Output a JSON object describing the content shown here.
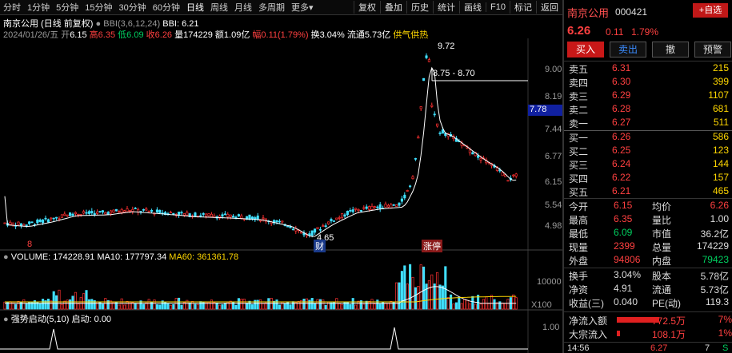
{
  "toolbar": {
    "items": [
      "分时",
      "1分钟",
      "5分钟",
      "15分钟",
      "30分钟",
      "60分钟",
      "日线",
      "周线",
      "月线",
      "多周期",
      "更多"
    ],
    "more_arrow": "▾",
    "right_items": [
      "复权",
      "叠加",
      "历史",
      "统计",
      "画线",
      "F10",
      "标记",
      "返回"
    ]
  },
  "chart": {
    "title": "南京公用 (日线 前复权)",
    "indicator": "BBI(3,6,12,24)",
    "indicator_value": "BBI: 6.21",
    "date": "2024/01/26/五",
    "open_label": "开",
    "open": "6.15",
    "high_label": "高",
    "high": "6.35",
    "low_label": "低",
    "low": "6.09",
    "close_label": "收",
    "close": "6.26",
    "vol_label": "量",
    "vol": "174229",
    "amt_label": "额",
    "amt": "1.09亿",
    "chg_label": "幅",
    "chg": "0.11(1.79%)",
    "turn_label": "换",
    "turn": "3.04%",
    "float_label": "流通",
    "float": "5.73亿",
    "tag": "供气供热",
    "peak_label": "9.72",
    "range_label": "8.75 - 8.70",
    "low_mark": "4.65",
    "price_ticks": [
      "9.00",
      "8.19",
      "7.44",
      "6.77",
      "6.15",
      "5.54",
      "4.98"
    ],
    "current_price_tag": "7.78",
    "event_tags": [
      "财",
      "涨停"
    ],
    "bottom_mark": "8"
  },
  "volume": {
    "label": "VOLUME: 174228.91",
    "ma10": "MA10: 177797.34",
    "ma60": "MA60: 361361.78",
    "tick": "10000",
    "unit": "X100"
  },
  "signal": {
    "label": "强势启动(5,10)",
    "value": "启动: 0.00",
    "tick": "1.00"
  },
  "quote": {
    "name": "南京公用",
    "code": "000421",
    "add_btn": "+自选",
    "price": "6.26",
    "change": "0.11",
    "pct": "1.79%",
    "buttons": [
      "买入",
      "卖出",
      "撤",
      "预警"
    ],
    "asks": [
      {
        "label": "卖五",
        "price": "6.31",
        "vol": "215"
      },
      {
        "label": "卖四",
        "price": "6.30",
        "vol": "399"
      },
      {
        "label": "卖三",
        "price": "6.29",
        "vol": "1107"
      },
      {
        "label": "卖二",
        "price": "6.28",
        "vol": "681"
      },
      {
        "label": "卖一",
        "price": "6.27",
        "vol": "511"
      }
    ],
    "bids": [
      {
        "label": "买一",
        "price": "6.26",
        "vol": "586"
      },
      {
        "label": "买二",
        "price": "6.25",
        "vol": "123"
      },
      {
        "label": "买三",
        "price": "6.24",
        "vol": "144"
      },
      {
        "label": "买四",
        "price": "6.22",
        "vol": "157"
      },
      {
        "label": "买五",
        "price": "6.21",
        "vol": "465"
      }
    ],
    "stats": [
      {
        "l1": "今开",
        "v1": "6.15",
        "l2": "均价",
        "v2": "6.26"
      },
      {
        "l1": "最高",
        "v1": "6.35",
        "l2": "量比",
        "v2": "1.00"
      },
      {
        "l1": "最低",
        "v1": "6.09",
        "l2": "市值",
        "v2": "36.2亿"
      },
      {
        "l1": "现量",
        "v1": "2399",
        "l2": "总量",
        "v2": "174229"
      },
      {
        "l1": "外盘",
        "v1": "94806",
        "l2": "内盘",
        "v2": "79423"
      }
    ],
    "fund": [
      {
        "l1": "换手",
        "v1": "3.04%",
        "l2": "股本",
        "v2": "5.78亿"
      },
      {
        "l1": "净资",
        "v1": "4.91",
        "l2": "流通",
        "v2": "5.73亿"
      },
      {
        "l1": "收益(三)",
        "v1": "0.040",
        "l2": "PE(动)",
        "v2": "119.3"
      }
    ],
    "flows": [
      {
        "label": "净流入额",
        "value": "772.5万",
        "pct": "7%",
        "bar": 0.85
      },
      {
        "label": "大宗流入",
        "value": "108.1万",
        "pct": "1%",
        "bar": 0.06
      }
    ],
    "time": "14:56",
    "last_price": "6.27",
    "last_vol": "7",
    "last_side": "S"
  }
}
